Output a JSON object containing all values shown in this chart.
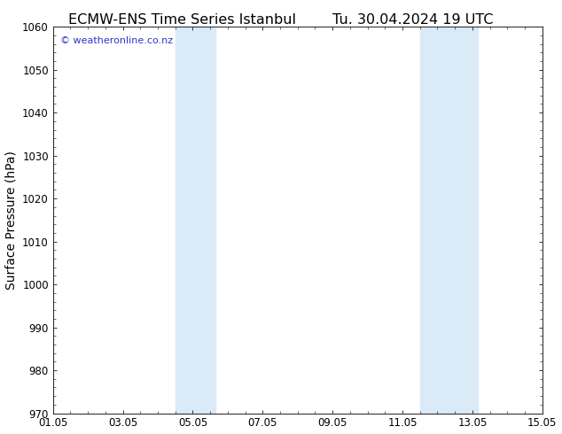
{
  "title_left": "ECMW-ENS Time Series Istanbul",
  "title_right": "Tu. 30.04.2024 19 UTC",
  "ylabel": "Surface Pressure (hPa)",
  "xlabel": "",
  "ylim": [
    970,
    1060
  ],
  "yticks": [
    970,
    980,
    990,
    1000,
    1010,
    1020,
    1030,
    1040,
    1050,
    1060
  ],
  "xlim_start": 0,
  "xlim_end": 14,
  "xtick_labels": [
    "01.05",
    "03.05",
    "05.05",
    "07.05",
    "09.05",
    "11.05",
    "13.05",
    "15.05"
  ],
  "xtick_positions": [
    0,
    2,
    4,
    6,
    8,
    10,
    12,
    14
  ],
  "shaded_regions": [
    {
      "x_start": 3.5,
      "x_end": 4.65
    },
    {
      "x_start": 10.5,
      "x_end": 12.15
    }
  ],
  "shade_color": "#daeaf7",
  "background_color": "#ffffff",
  "plot_bg_color": "#ffffff",
  "watermark_text": "© weatheronline.co.nz",
  "watermark_color": "#3333cc",
  "title_color": "#000000",
  "title_fontsize": 11.5,
  "axis_label_fontsize": 10,
  "tick_fontsize": 8.5,
  "spine_color": "#333333"
}
